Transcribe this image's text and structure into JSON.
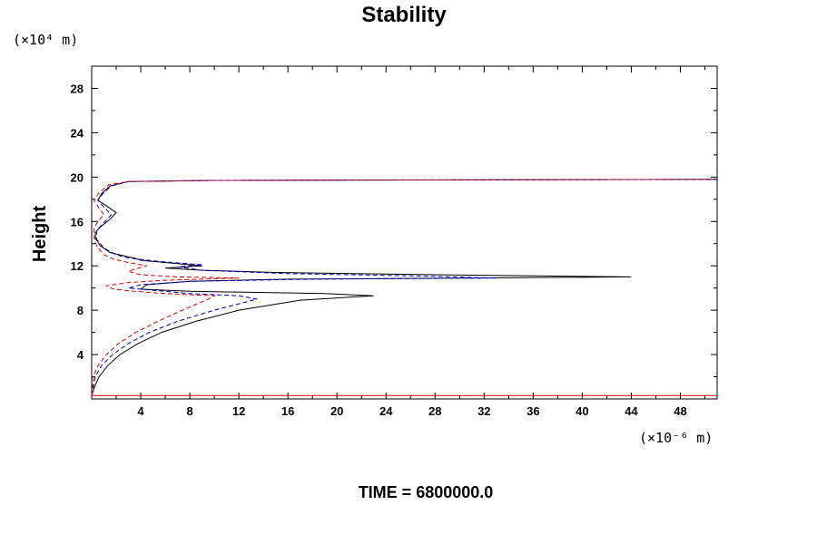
{
  "chart_data": {
    "type": "line",
    "title": "Stability",
    "xlabel": "",
    "ylabel": "Height",
    "x_unit": "(×10⁻⁶ m)",
    "y_unit": "(×10⁴ m)",
    "xlim": [
      0,
      51
    ],
    "ylim": [
      0,
      30
    ],
    "x_ticks": [
      4,
      8,
      12,
      16,
      20,
      24,
      28,
      32,
      36,
      40,
      44,
      48
    ],
    "y_ticks": [
      4,
      8,
      12,
      16,
      20,
      24,
      28
    ],
    "grid": false,
    "caption": "TIME = 6800000.0",
    "series": [
      {
        "name": "black-solid",
        "color": "#000000",
        "dash": "none",
        "points": [
          [
            0,
            0.3
          ],
          [
            0.2,
            1
          ],
          [
            0.6,
            2
          ],
          [
            1.3,
            3
          ],
          [
            2.3,
            4
          ],
          [
            3.8,
            5
          ],
          [
            5.7,
            6
          ],
          [
            8.5,
            7
          ],
          [
            12,
            8
          ],
          [
            17,
            8.9
          ],
          [
            23,
            9.3
          ],
          [
            19,
            9.5
          ],
          [
            8,
            9.7
          ],
          [
            6,
            9.8
          ],
          [
            4,
            9.9
          ],
          [
            4.5,
            10.3
          ],
          [
            8,
            10.6
          ],
          [
            16,
            10.8
          ],
          [
            30,
            10.9
          ],
          [
            44,
            11
          ],
          [
            28,
            11.2
          ],
          [
            15,
            11.4
          ],
          [
            9,
            11.6
          ],
          [
            6,
            11.8
          ],
          [
            9,
            12
          ],
          [
            7,
            12.2
          ],
          [
            4,
            12.5
          ],
          [
            3.5,
            12.7
          ],
          [
            3,
            12.8
          ],
          [
            1.5,
            13.2
          ],
          [
            0.7,
            13.8
          ],
          [
            0.3,
            14.5
          ],
          [
            0.3,
            15
          ],
          [
            0.7,
            15.5
          ],
          [
            1.5,
            16.2
          ],
          [
            2,
            16.8
          ],
          [
            1.2,
            17.4
          ],
          [
            0.5,
            17.9
          ],
          [
            0.8,
            18.5
          ],
          [
            1.5,
            19.2
          ],
          [
            3,
            19.6
          ],
          [
            10,
            19.7
          ],
          [
            51,
            19.8
          ]
        ]
      },
      {
        "name": "blue-dashed",
        "color": "#0000cc",
        "dash": "5,3",
        "points": [
          [
            0,
            0.3
          ],
          [
            0.3,
            2
          ],
          [
            0.8,
            3
          ],
          [
            1.7,
            4
          ],
          [
            3,
            5
          ],
          [
            4.7,
            6
          ],
          [
            7,
            7
          ],
          [
            10,
            8
          ],
          [
            13.5,
            9
          ],
          [
            12,
            9.3
          ],
          [
            8,
            9.5
          ],
          [
            5,
            9.8
          ],
          [
            3,
            10
          ],
          [
            4,
            10.3
          ],
          [
            8,
            10.6
          ],
          [
            18,
            10.8
          ],
          [
            33,
            10.9
          ],
          [
            26,
            11.1
          ],
          [
            16,
            11.3
          ],
          [
            9,
            11.6
          ],
          [
            7,
            11.9
          ],
          [
            9,
            12.1
          ],
          [
            5.5,
            12.4
          ],
          [
            3,
            12.7
          ],
          [
            2,
            13
          ],
          [
            1,
            13.6
          ],
          [
            0.4,
            14.4
          ],
          [
            0.4,
            15.2
          ],
          [
            1,
            15.9
          ],
          [
            1.6,
            16.6
          ],
          [
            1,
            17.3
          ],
          [
            0.5,
            17.9
          ],
          [
            0.9,
            18.5
          ],
          [
            1.6,
            19.2
          ],
          [
            3,
            19.6
          ],
          [
            10,
            19.7
          ],
          [
            51,
            19.8
          ]
        ]
      },
      {
        "name": "red-dashed",
        "color": "#dd0000",
        "dash": "5,3",
        "points": [
          [
            0,
            0.3
          ],
          [
            0.15,
            2
          ],
          [
            0.5,
            3
          ],
          [
            1.2,
            4
          ],
          [
            2.2,
            5
          ],
          [
            3.6,
            6
          ],
          [
            5.4,
            7
          ],
          [
            7.4,
            8
          ],
          [
            9.5,
            9
          ],
          [
            10,
            9.3
          ],
          [
            6,
            9.5
          ],
          [
            3.5,
            9.7
          ],
          [
            1.8,
            9.9
          ],
          [
            1.2,
            10.2
          ],
          [
            3,
            10.5
          ],
          [
            6,
            10.7
          ],
          [
            12,
            10.9
          ],
          [
            7,
            11
          ],
          [
            4,
            11.2
          ],
          [
            3,
            11.5
          ],
          [
            3.5,
            11.7
          ],
          [
            4.5,
            12
          ],
          [
            3,
            12.3
          ],
          [
            1.8,
            12.6
          ],
          [
            1,
            13
          ],
          [
            0.4,
            13.8
          ],
          [
            0.2,
            14.6
          ],
          [
            0.2,
            15.4
          ],
          [
            0.5,
            16
          ],
          [
            1,
            16.6
          ],
          [
            0.6,
            17.2
          ],
          [
            0.2,
            17.9
          ],
          [
            0.6,
            18.6
          ],
          [
            1.4,
            19.3
          ],
          [
            3,
            19.6
          ],
          [
            10,
            19.7
          ],
          [
            51,
            19.8
          ]
        ]
      },
      {
        "name": "baseline",
        "color": "#dd0000",
        "dash": "none",
        "points": [
          [
            0,
            0.3
          ],
          [
            51,
            0.3
          ]
        ]
      }
    ]
  }
}
